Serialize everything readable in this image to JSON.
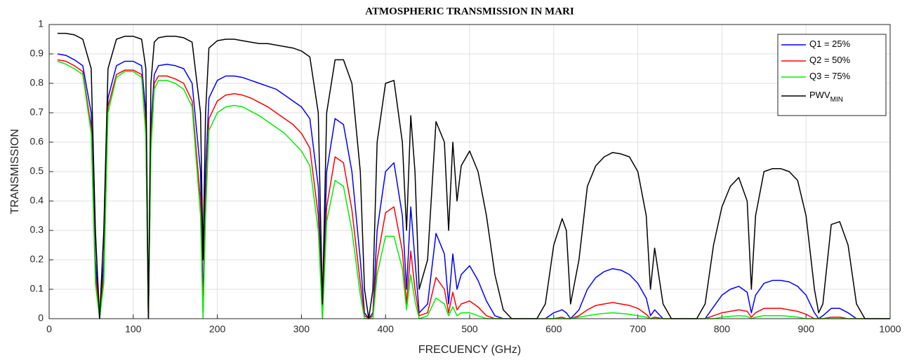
{
  "chart_data": {
    "type": "line",
    "title": "ATMOSPHERIC TRANSMISSION IN MARI",
    "x_label": "FRECUENCY (GHz)",
    "y_label": "TRANSMISSION",
    "xlim": [
      0,
      1000
    ],
    "ylim": [
      0,
      1
    ],
    "xticks": [
      0,
      100,
      200,
      300,
      400,
      500,
      600,
      700,
      800,
      900,
      1000
    ],
    "yticks": [
      0,
      0.1,
      0.2,
      0.3,
      0.4,
      0.5,
      0.6,
      0.7,
      0.8,
      0.9,
      1
    ],
    "grid": true,
    "legend": "top-right",
    "x": [
      10,
      20,
      30,
      40,
      50,
      55,
      60,
      65,
      70,
      80,
      90,
      100,
      110,
      115,
      118,
      121,
      125,
      130,
      140,
      150,
      160,
      170,
      180,
      183,
      186,
      190,
      200,
      210,
      220,
      230,
      240,
      250,
      260,
      270,
      280,
      290,
      300,
      310,
      320,
      325,
      330,
      340,
      350,
      360,
      370,
      375,
      380,
      385,
      390,
      400,
      410,
      420,
      425,
      430,
      435,
      440,
      450,
      460,
      470,
      475,
      480,
      485,
      490,
      500,
      510,
      520,
      530,
      540,
      550,
      560,
      570,
      580,
      590,
      600,
      610,
      615,
      620,
      630,
      640,
      650,
      660,
      670,
      680,
      690,
      700,
      710,
      715,
      720,
      730,
      740,
      750,
      760,
      770,
      780,
      790,
      800,
      810,
      820,
      830,
      835,
      840,
      850,
      860,
      870,
      880,
      890,
      900,
      910,
      915,
      920,
      930,
      940,
      950,
      960,
      970,
      980,
      990,
      1000
    ],
    "series": [
      {
        "name": "Q1 = 25%",
        "color": "#0000ff",
        "values": [
          0.9,
          0.895,
          0.88,
          0.86,
          0.7,
          0.2,
          0,
          0.2,
          0.75,
          0.86,
          0.875,
          0.875,
          0.86,
          0.7,
          0,
          0.65,
          0.83,
          0.86,
          0.865,
          0.86,
          0.85,
          0.8,
          0.5,
          0.05,
          0.5,
          0.75,
          0.81,
          0.825,
          0.825,
          0.82,
          0.81,
          0.8,
          0.79,
          0.78,
          0.76,
          0.74,
          0.72,
          0.68,
          0.45,
          0,
          0.5,
          0.68,
          0.66,
          0.5,
          0.2,
          0.02,
          0,
          0.02,
          0.3,
          0.5,
          0.53,
          0.35,
          0.1,
          0.38,
          0.2,
          0.02,
          0.05,
          0.29,
          0.22,
          0.05,
          0.22,
          0.1,
          0.15,
          0.18,
          0.13,
          0.06,
          0.01,
          0,
          0,
          0,
          0,
          0,
          0,
          0.02,
          0.03,
          0.02,
          0,
          0.03,
          0.1,
          0.14,
          0.16,
          0.17,
          0.165,
          0.15,
          0.12,
          0.07,
          0.01,
          0.03,
          0,
          0,
          0,
          0,
          0,
          0,
          0.04,
          0.08,
          0.1,
          0.11,
          0.09,
          0.02,
          0.08,
          0.12,
          0.13,
          0.13,
          0.125,
          0.11,
          0.08,
          0.02,
          0,
          0.01,
          0.035,
          0.035,
          0.02,
          0,
          0,
          0,
          0,
          0
        ]
      },
      {
        "name": "Q2 = 50%",
        "color": "#ff0000",
        "values": [
          0.88,
          0.875,
          0.86,
          0.84,
          0.65,
          0.15,
          0,
          0.15,
          0.72,
          0.83,
          0.845,
          0.845,
          0.83,
          0.65,
          0,
          0.6,
          0.8,
          0.825,
          0.825,
          0.815,
          0.8,
          0.74,
          0.4,
          0.02,
          0.4,
          0.68,
          0.74,
          0.76,
          0.765,
          0.76,
          0.75,
          0.735,
          0.72,
          0.7,
          0.68,
          0.66,
          0.63,
          0.58,
          0.35,
          0,
          0.38,
          0.55,
          0.53,
          0.37,
          0.12,
          0.01,
          0,
          0.01,
          0.2,
          0.36,
          0.38,
          0.23,
          0.05,
          0.23,
          0.1,
          0.01,
          0.02,
          0.14,
          0.1,
          0.02,
          0.09,
          0.03,
          0.05,
          0.06,
          0.04,
          0.01,
          0,
          0,
          0,
          0,
          0,
          0,
          0,
          0,
          0.005,
          0,
          0,
          0.01,
          0.03,
          0.045,
          0.05,
          0.055,
          0.05,
          0.045,
          0.035,
          0.015,
          0,
          0.005,
          0,
          0,
          0,
          0,
          0,
          0,
          0.01,
          0.02,
          0.025,
          0.03,
          0.025,
          0.005,
          0.02,
          0.035,
          0.035,
          0.035,
          0.03,
          0.025,
          0.015,
          0,
          0,
          0,
          0.005,
          0.005,
          0,
          0,
          0,
          0,
          0,
          0
        ]
      },
      {
        "name": "Q3 = 75%",
        "color": "#00ee00",
        "values": [
          0.875,
          0.865,
          0.85,
          0.83,
          0.63,
          0.12,
          0,
          0.12,
          0.7,
          0.82,
          0.84,
          0.84,
          0.82,
          0.62,
          0,
          0.57,
          0.78,
          0.81,
          0.81,
          0.8,
          0.78,
          0.72,
          0.35,
          0,
          0.35,
          0.64,
          0.7,
          0.72,
          0.725,
          0.72,
          0.705,
          0.69,
          0.67,
          0.65,
          0.63,
          0.6,
          0.57,
          0.52,
          0.3,
          0,
          0.33,
          0.47,
          0.45,
          0.3,
          0.08,
          0,
          0,
          0,
          0.15,
          0.28,
          0.28,
          0.17,
          0.03,
          0.15,
          0.06,
          0,
          0.01,
          0.07,
          0.05,
          0.01,
          0.04,
          0.01,
          0.02,
          0.02,
          0.01,
          0,
          0,
          0,
          0,
          0,
          0,
          0,
          0,
          0,
          0,
          0,
          0,
          0.005,
          0.01,
          0.015,
          0.018,
          0.02,
          0.018,
          0.015,
          0.01,
          0.005,
          0,
          0,
          0,
          0,
          0,
          0,
          0,
          0,
          0,
          0.005,
          0.008,
          0.01,
          0.008,
          0,
          0.005,
          0.01,
          0.01,
          0.01,
          0.008,
          0.005,
          0,
          0,
          0,
          0,
          0,
          0,
          0,
          0,
          0,
          0,
          0,
          0
        ]
      },
      {
        "name": "PWV",
        "name_subscript": "MIN",
        "color": "#000000",
        "values": [
          0.97,
          0.97,
          0.965,
          0.95,
          0.85,
          0.3,
          0,
          0.3,
          0.85,
          0.95,
          0.96,
          0.96,
          0.95,
          0.85,
          0,
          0.8,
          0.94,
          0.955,
          0.96,
          0.96,
          0.955,
          0.94,
          0.7,
          0.2,
          0.7,
          0.92,
          0.945,
          0.95,
          0.95,
          0.945,
          0.94,
          0.935,
          0.935,
          0.93,
          0.925,
          0.92,
          0.91,
          0.89,
          0.7,
          0.05,
          0.7,
          0.88,
          0.88,
          0.8,
          0.5,
          0.1,
          0,
          0.1,
          0.6,
          0.8,
          0.81,
          0.6,
          0.3,
          0.69,
          0.5,
          0.1,
          0.2,
          0.67,
          0.6,
          0.3,
          0.6,
          0.4,
          0.52,
          0.57,
          0.5,
          0.35,
          0.15,
          0.03,
          0,
          0,
          0,
          0,
          0.05,
          0.25,
          0.34,
          0.3,
          0.05,
          0.2,
          0.45,
          0.52,
          0.55,
          0.565,
          0.56,
          0.55,
          0.5,
          0.35,
          0.1,
          0.24,
          0.05,
          0,
          0,
          0,
          0,
          0.05,
          0.25,
          0.38,
          0.45,
          0.48,
          0.4,
          0.1,
          0.35,
          0.5,
          0.51,
          0.51,
          0.5,
          0.47,
          0.35,
          0.1,
          0.02,
          0.05,
          0.32,
          0.33,
          0.25,
          0.05,
          0,
          0,
          0,
          0
        ]
      }
    ]
  }
}
